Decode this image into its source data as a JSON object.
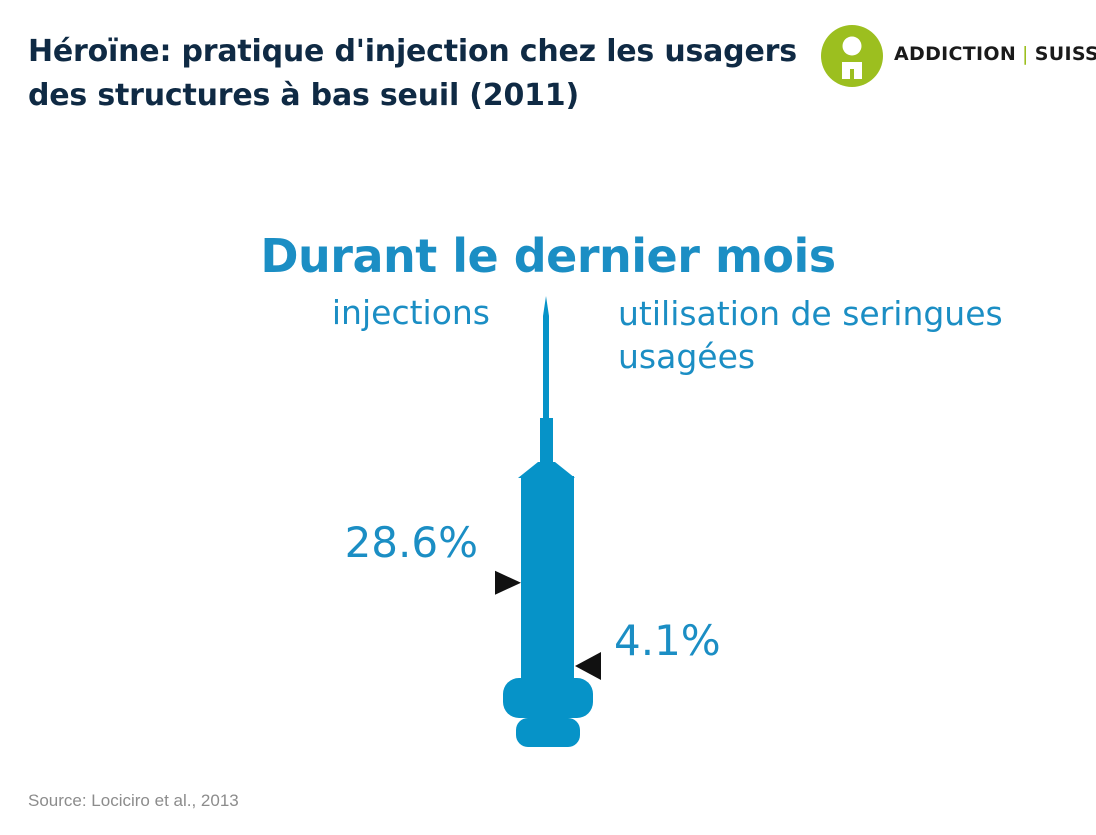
{
  "title": "Héroïne: pratique d'injection chez les usagers des structures à bas seuil (2011)",
  "logo": {
    "part1": "ADDICTION",
    "separator": "|",
    "part2": "SUISSE",
    "mark_color": "#9cbf1f"
  },
  "chart_data": {
    "type": "bar",
    "subtitle": "Durant le dernier mois",
    "categories": [
      "injections",
      "utilisation de seringues usagées"
    ],
    "values": [
      28.6,
      4.1
    ],
    "value_labels": [
      "28.6%",
      "4.1%"
    ],
    "ylim": [
      0,
      100
    ],
    "color": "#0693c8"
  },
  "source": "Source: Lociciro et al., 2013"
}
